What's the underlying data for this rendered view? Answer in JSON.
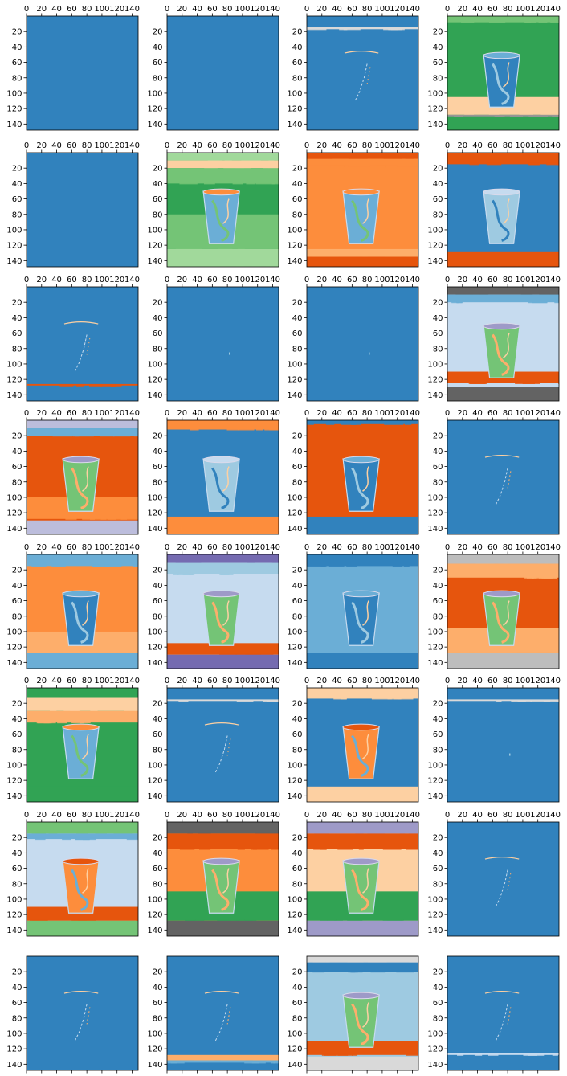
{
  "figure": {
    "rows": 8,
    "cols": 4,
    "colormap": "tab20c"
  },
  "chart_data": {
    "type": "heatmap",
    "description_free": true,
    "panel_count": 32,
    "image_size": [
      148,
      148
    ],
    "x_ticks": [
      0,
      20,
      40,
      60,
      80,
      100,
      120,
      140
    ],
    "y_ticks": [
      20,
      40,
      60,
      80,
      100,
      120,
      140
    ],
    "x_tick_labels": [
      "0",
      "20",
      "40",
      "60",
      "80",
      "100",
      "120",
      "140"
    ],
    "y_tick_labels": [
      "20",
      "40",
      "60",
      "80",
      "100",
      "120",
      "140"
    ],
    "xlim": [
      0,
      148
    ],
    "ylim": [
      148,
      0
    ],
    "grid": false,
    "palette": {
      "blue": "#3182bd",
      "blue_l": "#6baed6",
      "blue_ll": "#9ecae1",
      "blue_lll": "#c6dbef",
      "orange": "#e6550d",
      "orange_l": "#fd8d3c",
      "orange_ll": "#fdae6b",
      "orange_lll": "#fdd0a2",
      "green": "#31a354",
      "green_l": "#74c476",
      "green_ll": "#a1d99b",
      "green_lll": "#c7e9c0",
      "purple": "#756bb1",
      "purple_l": "#9e9ac8",
      "purple_ll": "#bcbddc",
      "purple_lll": "#dadaeb",
      "gray": "#636363",
      "gray_l": "#969696",
      "gray_ll": "#bdbdbd",
      "gray_lll": "#d9d9d9"
    },
    "panels": [
      {
        "bg": "blue",
        "bands": [],
        "cup": null,
        "sparse": 0
      },
      {
        "bg": "blue",
        "bands": [],
        "cup": null,
        "sparse": 0
      },
      {
        "bg": "blue",
        "bands": [
          [
            14,
            17,
            "gray_lll"
          ]
        ],
        "cup": "outline",
        "sparse": 1
      },
      {
        "bg": "green",
        "bands": [
          [
            0,
            8,
            "green_l"
          ],
          [
            105,
            128,
            "orange_lll"
          ],
          [
            128,
            130,
            "gray_l"
          ]
        ],
        "cup": "blue",
        "sparse": 0
      },
      {
        "bg": "blue",
        "bands": [],
        "cup": null,
        "sparse": 0
      },
      {
        "bg": "green",
        "bands": [
          [
            0,
            10,
            "green_ll"
          ],
          [
            10,
            20,
            "orange_lll"
          ],
          [
            20,
            40,
            "green_l"
          ],
          [
            80,
            125,
            "green_l"
          ],
          [
            125,
            148,
            "green_ll"
          ]
        ],
        "cup": "mixed",
        "sparse": 0
      },
      {
        "bg": "orange_l",
        "bands": [
          [
            0,
            8,
            "orange"
          ],
          [
            8,
            18,
            "orange_l"
          ],
          [
            125,
            135,
            "orange_ll"
          ],
          [
            135,
            148,
            "orange"
          ]
        ],
        "cup": "mixed",
        "sparse": 0
      },
      {
        "bg": "blue",
        "bands": [
          [
            0,
            15,
            "orange"
          ],
          [
            128,
            148,
            "orange"
          ]
        ],
        "cup": "light",
        "sparse": 0
      },
      {
        "bg": "blue",
        "bands": [
          [
            126,
            128,
            "orange"
          ]
        ],
        "cup": "outline",
        "sparse": 1
      },
      {
        "bg": "blue",
        "bands": [],
        "cup": null,
        "sparse": 2
      },
      {
        "bg": "blue",
        "bands": [],
        "cup": null,
        "sparse": 2
      },
      {
        "bg": "blue_lll",
        "bands": [
          [
            0,
            10,
            "gray"
          ],
          [
            10,
            20,
            "blue_l"
          ],
          [
            110,
            125,
            "orange"
          ],
          [
            130,
            148,
            "gray"
          ]
        ],
        "cup": "greenish",
        "sparse": 0
      },
      {
        "bg": "orange",
        "bands": [
          [
            0,
            10,
            "purple_ll"
          ],
          [
            10,
            20,
            "blue_l"
          ],
          [
            100,
            128,
            "orange_l"
          ],
          [
            130,
            148,
            "purple_ll"
          ]
        ],
        "cup": "greenish",
        "sparse": 0
      },
      {
        "bg": "blue",
        "bands": [
          [
            0,
            12,
            "orange_l"
          ],
          [
            125,
            148,
            "orange_l"
          ]
        ],
        "cup": "light",
        "sparse": 0
      },
      {
        "bg": "orange",
        "bands": [
          [
            0,
            5,
            "blue"
          ],
          [
            125,
            148,
            "blue"
          ]
        ],
        "cup": "blue",
        "sparse": 0
      },
      {
        "bg": "blue",
        "bands": [],
        "cup": "outline",
        "sparse": 1
      },
      {
        "bg": "orange_l",
        "bands": [
          [
            0,
            15,
            "blue_l"
          ],
          [
            100,
            128,
            "orange_ll"
          ],
          [
            128,
            148,
            "blue_l"
          ]
        ],
        "cup": "blue",
        "sparse": 0
      },
      {
        "bg": "blue_lll",
        "bands": [
          [
            0,
            10,
            "purple"
          ],
          [
            10,
            25,
            "blue_ll"
          ],
          [
            115,
            130,
            "orange"
          ],
          [
            130,
            148,
            "purple"
          ]
        ],
        "cup": "greenish",
        "sparse": 0
      },
      {
        "bg": "blue_l",
        "bands": [
          [
            0,
            15,
            "blue"
          ],
          [
            128,
            148,
            "blue"
          ]
        ],
        "cup": "blue",
        "sparse": 0
      },
      {
        "bg": "orange",
        "bands": [
          [
            0,
            12,
            "gray_ll"
          ],
          [
            12,
            30,
            "orange_ll"
          ],
          [
            95,
            128,
            "orange_ll"
          ],
          [
            128,
            148,
            "gray_ll"
          ]
        ],
        "cup": "greenish",
        "sparse": 0
      },
      {
        "bg": "green",
        "bands": [
          [
            0,
            12,
            "green"
          ],
          [
            12,
            30,
            "orange_lll"
          ],
          [
            30,
            45,
            "orange_ll"
          ],
          [
            128,
            148,
            "green"
          ]
        ],
        "cup": "mixed",
        "sparse": 0
      },
      {
        "bg": "blue",
        "bands": [
          [
            15,
            17,
            "gray_lll"
          ]
        ],
        "cup": "outline",
        "sparse": 1
      },
      {
        "bg": "blue",
        "bands": [
          [
            0,
            14,
            "orange_lll"
          ],
          [
            128,
            148,
            "orange_lll"
          ]
        ],
        "cup": "orange",
        "sparse": 0
      },
      {
        "bg": "blue",
        "bands": [
          [
            15,
            17,
            "gray_lll"
          ]
        ],
        "cup": null,
        "sparse": 2
      },
      {
        "bg": "blue_lll",
        "bands": [
          [
            0,
            15,
            "green_l"
          ],
          [
            15,
            22,
            "blue_l"
          ],
          [
            110,
            128,
            "orange"
          ],
          [
            128,
            148,
            "green_l"
          ]
        ],
        "cup": "orange",
        "sparse": 0
      },
      {
        "bg": "orange_l",
        "bands": [
          [
            0,
            15,
            "gray"
          ],
          [
            15,
            35,
            "orange"
          ],
          [
            90,
            128,
            "green"
          ],
          [
            128,
            148,
            "gray"
          ]
        ],
        "cup": "greenish",
        "sparse": 0
      },
      {
        "bg": "orange_lll",
        "bands": [
          [
            0,
            15,
            "purple_l"
          ],
          [
            15,
            35,
            "orange"
          ],
          [
            90,
            128,
            "green"
          ],
          [
            128,
            148,
            "purple_l"
          ]
        ],
        "cup": "greenish",
        "sparse": 0
      },
      {
        "bg": "blue",
        "bands": [],
        "cup": "outline",
        "sparse": 1
      },
      {
        "bg": "blue",
        "bands": [],
        "cup": "outline",
        "sparse": 1
      },
      {
        "bg": "blue",
        "bands": [
          [
            128,
            135,
            "orange_ll"
          ],
          [
            135,
            138,
            "blue_l"
          ]
        ],
        "cup": "outline",
        "sparse": 1
      },
      {
        "bg": "blue_ll",
        "bands": [
          [
            0,
            8,
            "gray_lll"
          ],
          [
            8,
            20,
            "blue"
          ],
          [
            110,
            128,
            "orange"
          ],
          [
            130,
            148,
            "gray_lll"
          ]
        ],
        "cup": "greenish",
        "sparse": 0
      },
      {
        "bg": "blue",
        "bands": [
          [
            126,
            128,
            "blue_lll"
          ]
        ],
        "cup": "outline",
        "sparse": 1
      }
    ]
  }
}
